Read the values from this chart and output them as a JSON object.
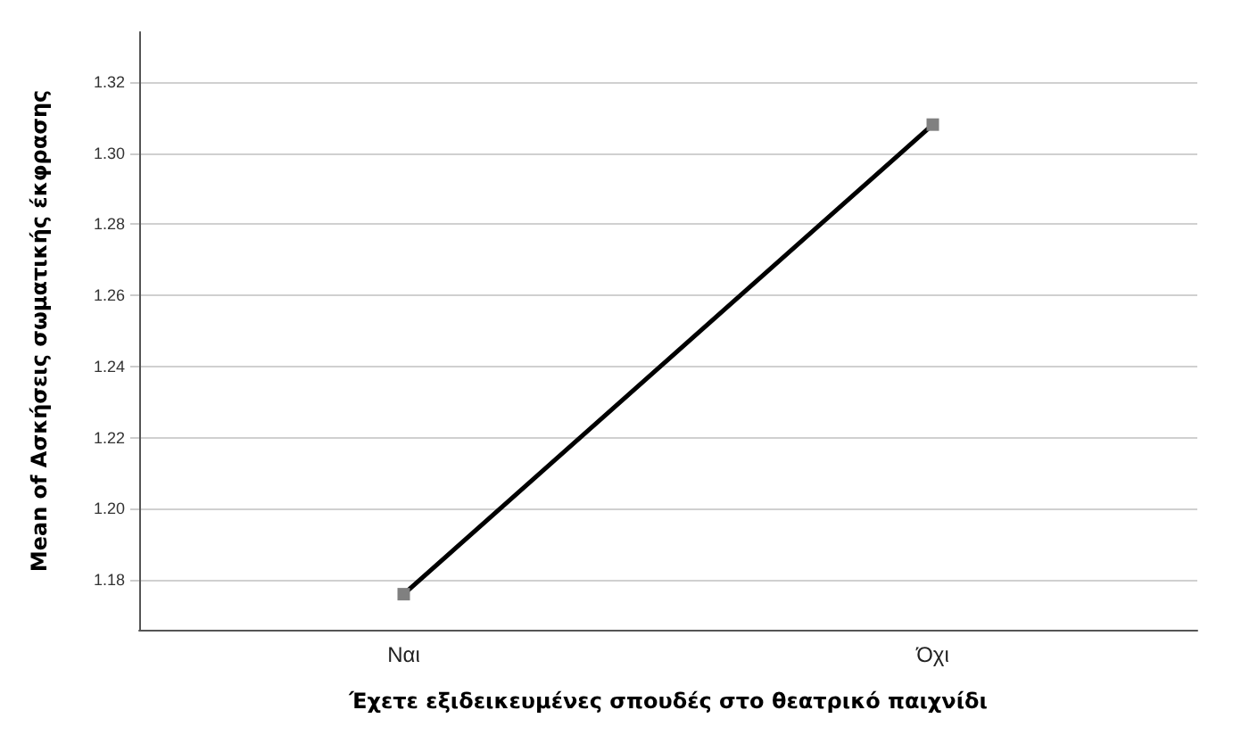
{
  "chart_data": {
    "type": "line",
    "xlabel": "Έχετε εξιδεικευμένες σπουδές στο θεατρικό παιχνίδι",
    "ylabel": "Mean of Ασκήσεις σωματικής έκφρασης",
    "categories": [
      "Ναι",
      "Όχι"
    ],
    "series": [
      {
        "color": "#000000",
        "values": [
          1.176,
          1.308
        ]
      }
    ],
    "ylim": [
      1.166,
      1.334
    ],
    "yticks": [
      1.18,
      {
        "value": 1.2,
        "label": "1.20"
      },
      1.22,
      1.24,
      1.26,
      1.28,
      {
        "value": 1.3,
        "label": "1.30"
      },
      1.32
    ],
    "grid": "y",
    "marker": "square",
    "line_style": "solid"
  }
}
